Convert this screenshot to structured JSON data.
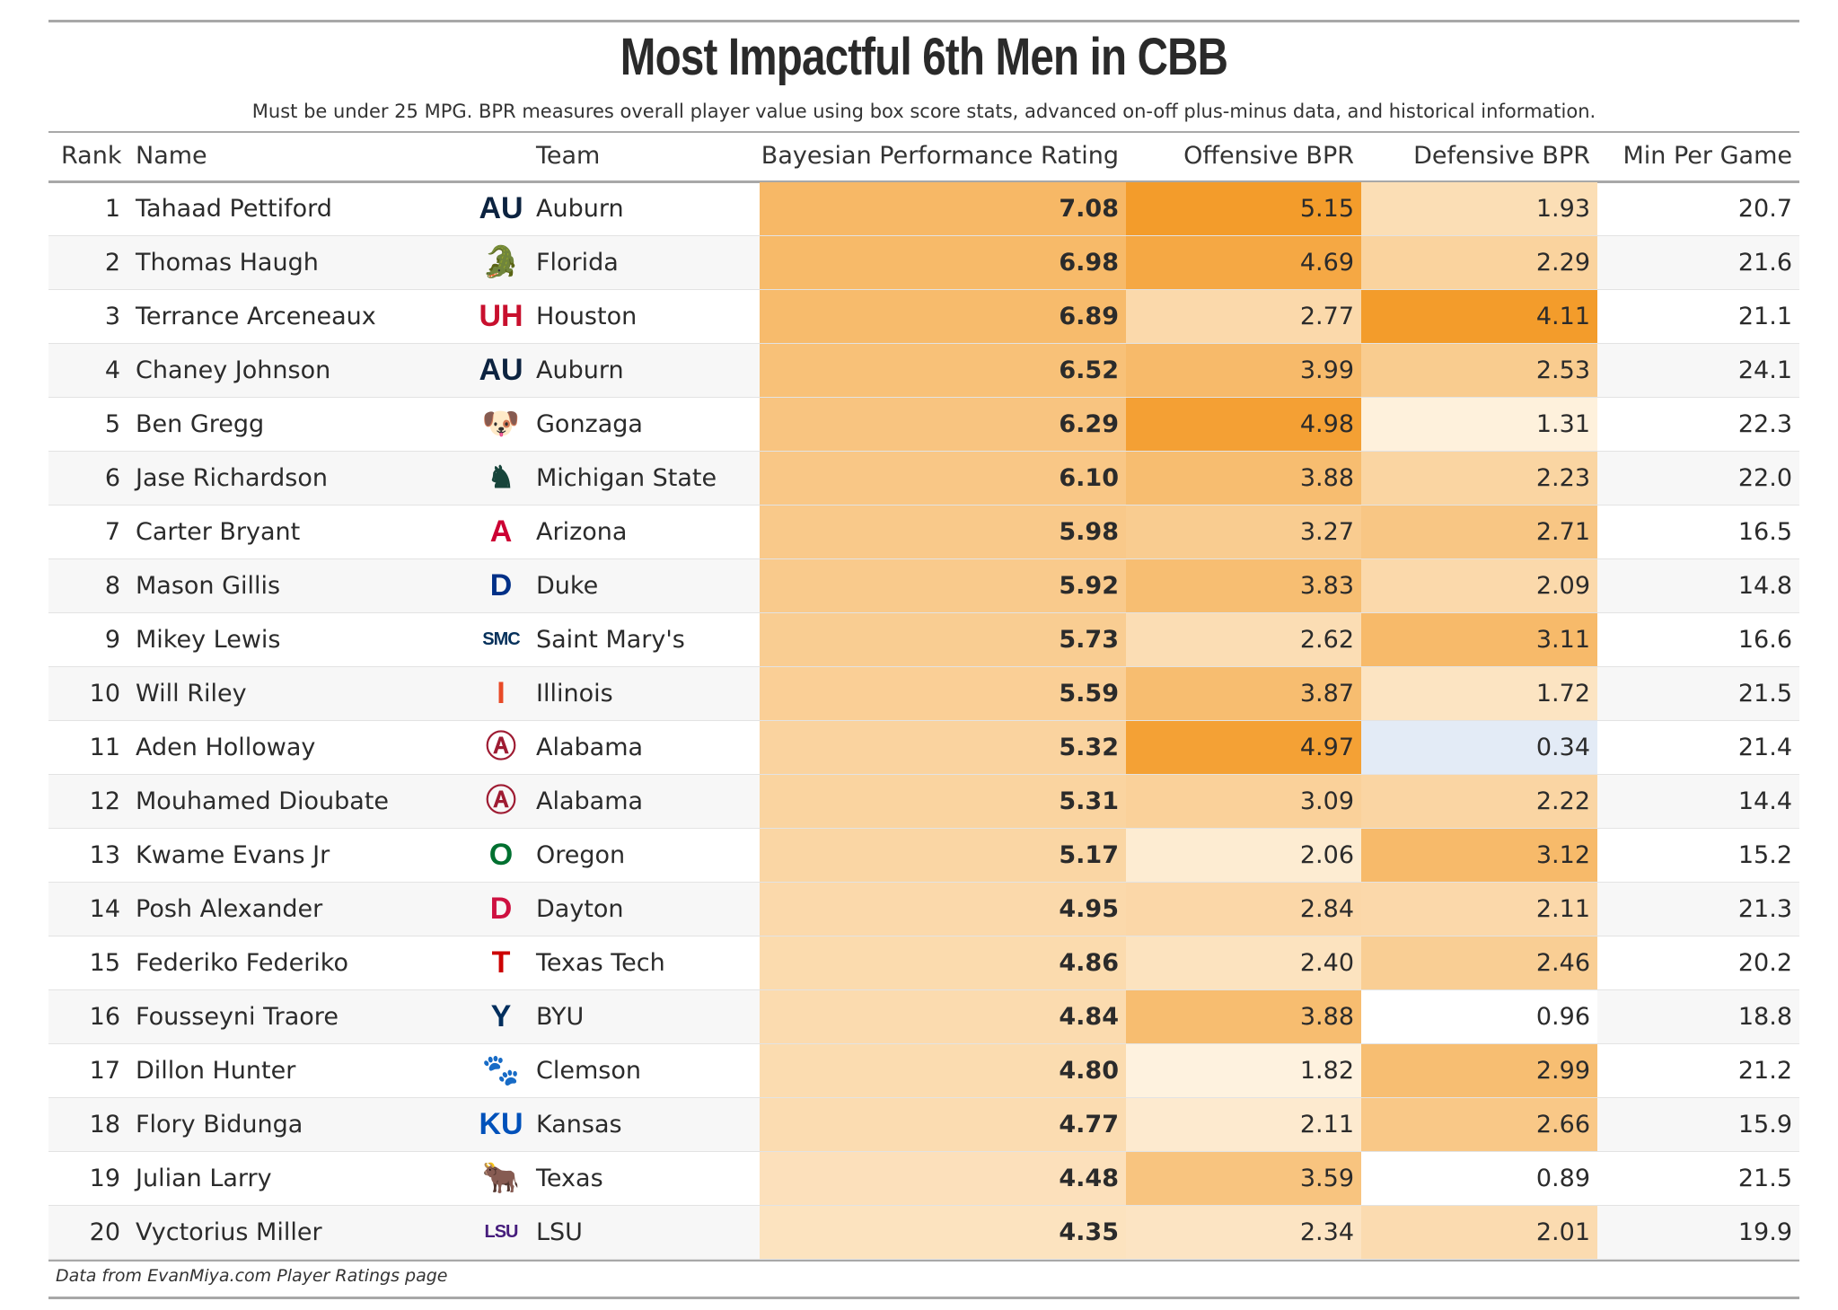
{
  "title": "Most Impactful 6th Men in CBB",
  "subtitle": "Must be under 25 MPG. BPR measures overall player value using box score stats, advanced on-off plus-minus data, and historical information.",
  "columns": {
    "rank": "Rank",
    "name": "Name",
    "team": "Team",
    "bpr": "Bayesian Performance Rating",
    "off": "Offensive BPR",
    "def": "Defensive BPR",
    "mpg": "Min Per Game"
  },
  "colors": {
    "high": "#f39c2b",
    "low": "#ffffff",
    "negative_low": "#e3ebf6"
  },
  "rows": [
    {
      "rank": "1",
      "name": "Tahaad Pettiford",
      "team": "Auburn",
      "logo": "auburn-logo",
      "logo_text": "AU",
      "logo_color": "#0c2340",
      "bpr": "7.08",
      "off": "5.15",
      "def": "1.93",
      "mpg": "20.7"
    },
    {
      "rank": "2",
      "name": "Thomas Haugh",
      "team": "Florida",
      "logo": "florida-logo",
      "logo_text": "🐊",
      "logo_color": "#0b6e3c",
      "bpr": "6.98",
      "off": "4.69",
      "def": "2.29",
      "mpg": "21.6"
    },
    {
      "rank": "3",
      "name": "Terrance Arceneaux",
      "team": "Houston",
      "logo": "houston-logo",
      "logo_text": "UH",
      "logo_color": "#c8102e",
      "bpr": "6.89",
      "off": "2.77",
      "def": "4.11",
      "mpg": "21.1"
    },
    {
      "rank": "4",
      "name": "Chaney Johnson",
      "team": "Auburn",
      "logo": "auburn-logo",
      "logo_text": "AU",
      "logo_color": "#0c2340",
      "bpr": "6.52",
      "off": "3.99",
      "def": "2.53",
      "mpg": "24.1"
    },
    {
      "rank": "5",
      "name": "Ben Gregg",
      "team": "Gonzaga",
      "logo": "gonzaga-logo",
      "logo_text": "🐶",
      "logo_color": "#041e42",
      "bpr": "6.29",
      "off": "4.98",
      "def": "1.31",
      "mpg": "22.3"
    },
    {
      "rank": "6",
      "name": "Jase Richardson",
      "team": "Michigan State",
      "logo": "michigan-state-logo",
      "logo_text": "♞",
      "logo_color": "#18453b",
      "bpr": "6.10",
      "off": "3.88",
      "def": "2.23",
      "mpg": "22.0"
    },
    {
      "rank": "7",
      "name": "Carter Bryant",
      "team": "Arizona",
      "logo": "arizona-logo",
      "logo_text": "A",
      "logo_color": "#cc0033",
      "bpr": "5.98",
      "off": "3.27",
      "def": "2.71",
      "mpg": "16.5"
    },
    {
      "rank": "8",
      "name": "Mason Gillis",
      "team": "Duke",
      "logo": "duke-logo",
      "logo_text": "D",
      "logo_color": "#003087",
      "bpr": "5.92",
      "off": "3.83",
      "def": "2.09",
      "mpg": "14.8"
    },
    {
      "rank": "9",
      "name": "Mikey Lewis",
      "team": "Saint Mary's",
      "logo": "saint-marys-logo",
      "logo_text": "SMC",
      "logo_color": "#06315b",
      "bpr": "5.73",
      "off": "2.62",
      "def": "3.11",
      "mpg": "16.6"
    },
    {
      "rank": "10",
      "name": "Will Riley",
      "team": "Illinois",
      "logo": "illinois-logo",
      "logo_text": "I",
      "logo_color": "#e84a27",
      "bpr": "5.59",
      "off": "3.87",
      "def": "1.72",
      "mpg": "21.5"
    },
    {
      "rank": "11",
      "name": "Aden Holloway",
      "team": "Alabama",
      "logo": "alabama-logo",
      "logo_text": "Ⓐ",
      "logo_color": "#9e1b32",
      "bpr": "5.32",
      "off": "4.97",
      "def": "0.34",
      "mpg": "21.4"
    },
    {
      "rank": "12",
      "name": "Mouhamed Dioubate",
      "team": "Alabama",
      "logo": "alabama-logo",
      "logo_text": "Ⓐ",
      "logo_color": "#9e1b32",
      "bpr": "5.31",
      "off": "3.09",
      "def": "2.22",
      "mpg": "14.4"
    },
    {
      "rank": "13",
      "name": "Kwame Evans Jr",
      "team": "Oregon",
      "logo": "oregon-logo",
      "logo_text": "O",
      "logo_color": "#007030",
      "bpr": "5.17",
      "off": "2.06",
      "def": "3.12",
      "mpg": "15.2"
    },
    {
      "rank": "14",
      "name": "Posh Alexander",
      "team": "Dayton",
      "logo": "dayton-logo",
      "logo_text": "D",
      "logo_color": "#ce1141",
      "bpr": "4.95",
      "off": "2.84",
      "def": "2.11",
      "mpg": "21.3"
    },
    {
      "rank": "15",
      "name": "Federiko Federiko",
      "team": "Texas Tech",
      "logo": "texas-tech-logo",
      "logo_text": "T",
      "logo_color": "#cc0000",
      "bpr": "4.86",
      "off": "2.40",
      "def": "2.46",
      "mpg": "20.2"
    },
    {
      "rank": "16",
      "name": "Fousseyni Traore",
      "team": "BYU",
      "logo": "byu-logo",
      "logo_text": "Y",
      "logo_color": "#002e5d",
      "bpr": "4.84",
      "off": "3.88",
      "def": "0.96",
      "mpg": "18.8"
    },
    {
      "rank": "17",
      "name": "Dillon Hunter",
      "team": "Clemson",
      "logo": "clemson-logo",
      "logo_text": "🐾",
      "logo_color": "#f56600",
      "bpr": "4.80",
      "off": "1.82",
      "def": "2.99",
      "mpg": "21.2"
    },
    {
      "rank": "18",
      "name": "Flory Bidunga",
      "team": "Kansas",
      "logo": "kansas-logo",
      "logo_text": "KU",
      "logo_color": "#0051ba",
      "bpr": "4.77",
      "off": "2.11",
      "def": "2.66",
      "mpg": "15.9"
    },
    {
      "rank": "19",
      "name": "Julian Larry",
      "team": "Texas",
      "logo": "texas-logo",
      "logo_text": "🐂",
      "logo_color": "#bf5700",
      "bpr": "4.48",
      "off": "3.59",
      "def": "0.89",
      "mpg": "21.5"
    },
    {
      "rank": "20",
      "name": "Vyctorius Miller",
      "team": "LSU",
      "logo": "lsu-logo",
      "logo_text": "LSU",
      "logo_color": "#461d7c",
      "bpr": "4.35",
      "off": "2.34",
      "def": "2.01",
      "mpg": "19.9"
    }
  ],
  "footer": "Data from EvanMiya.com Player Ratings page"
}
